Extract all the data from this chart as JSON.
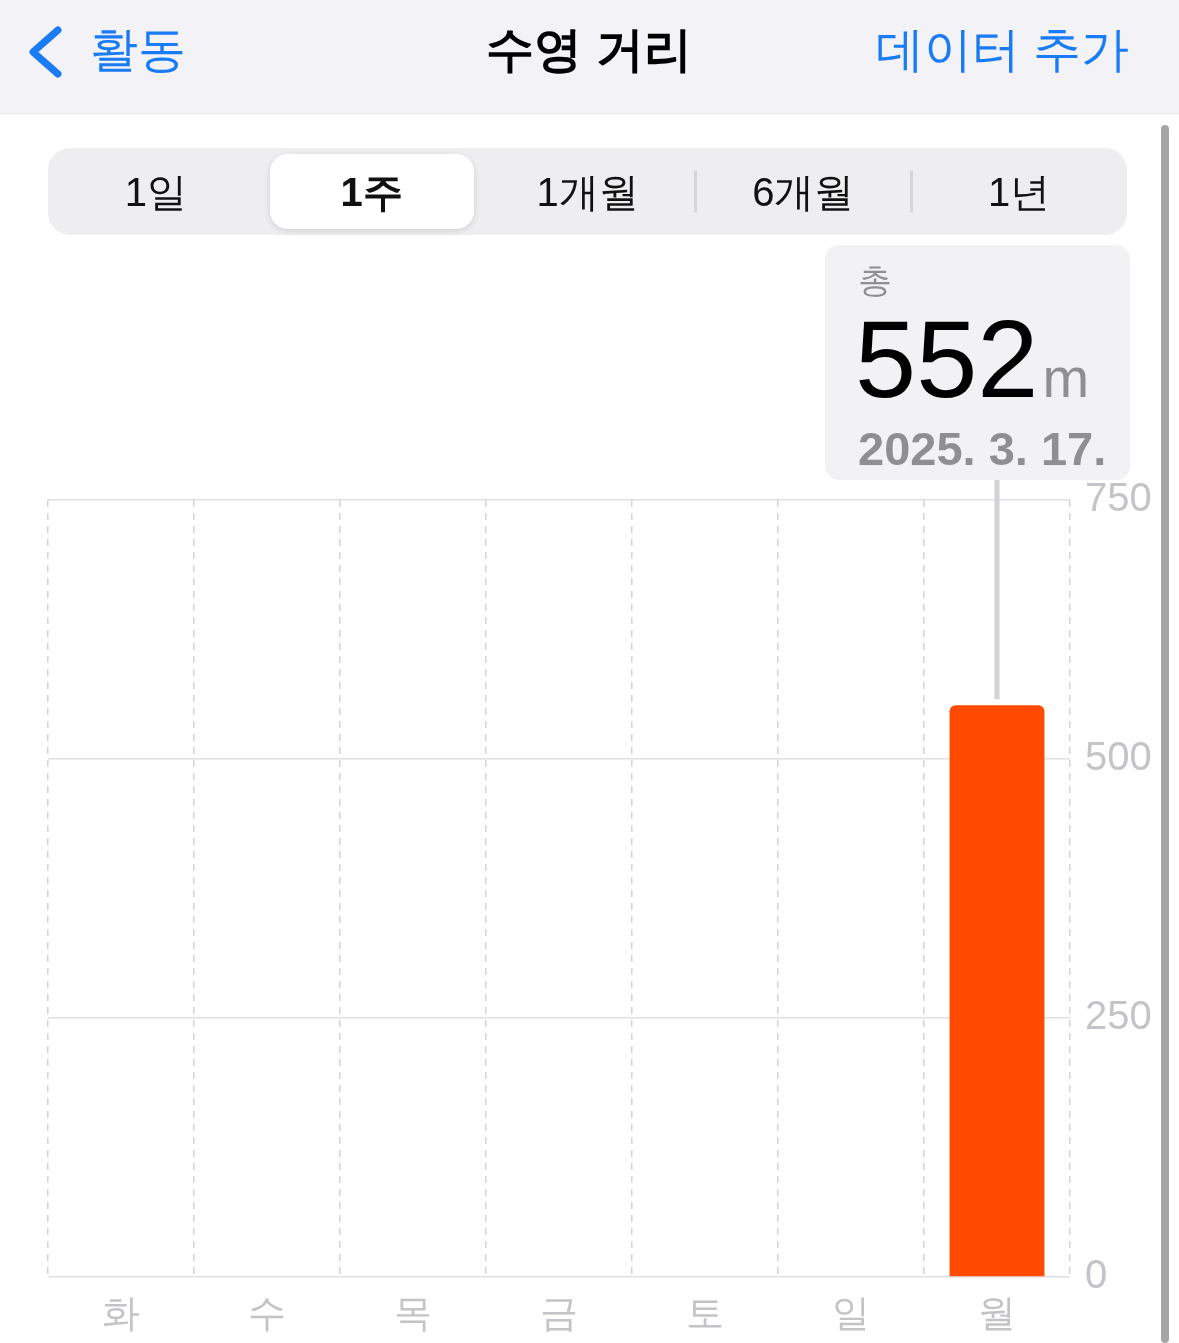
{
  "chart_data": {
    "type": "bar",
    "title": "수영 거리",
    "categories": [
      "화",
      "수",
      "목",
      "금",
      "토",
      "일",
      "월"
    ],
    "values": [
      null,
      null,
      null,
      null,
      null,
      null,
      552
    ],
    "color": "#ff4a00",
    "value_labels": [
      null,
      null,
      null,
      null,
      null,
      null,
      "552m"
    ],
    "ylim": [
      0,
      750
    ],
    "yticks": [
      0,
      250,
      500,
      750
    ],
    "grid": true,
    "annotations": [
      "활동",
      "데이터 추가",
      "1일",
      "1주",
      "1개월",
      "6개월",
      "1년",
      "총",
      "2025. 3. 17."
    ]
  }
}
